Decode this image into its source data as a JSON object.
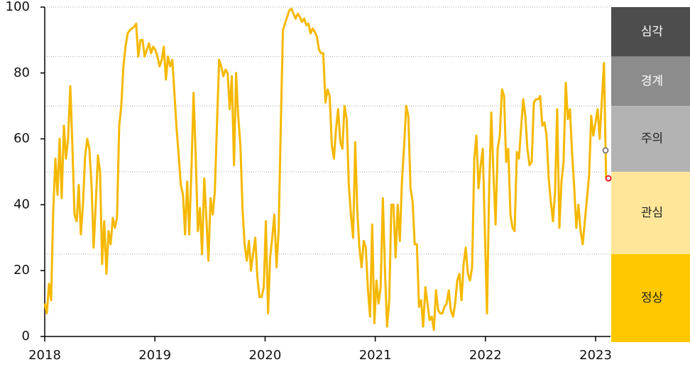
{
  "chart_data": {
    "type": "line",
    "color": "#f5b800",
    "x": [
      2018,
      2018.019,
      2018.039,
      2018.058,
      2018.077,
      2018.097,
      2018.116,
      2018.135,
      2018.154,
      2018.174,
      2018.193,
      2018.212,
      2018.232,
      2018.251,
      2018.27,
      2018.29,
      2018.309,
      2018.328,
      2018.347,
      2018.367,
      2018.386,
      2018.405,
      2018.425,
      2018.444,
      2018.463,
      2018.483,
      2018.502,
      2018.521,
      2018.54,
      2018.56,
      2018.579,
      2018.598,
      2018.618,
      2018.637,
      2018.656,
      2018.676,
      2018.695,
      2018.714,
      2018.733,
      2018.753,
      2018.772,
      2018.791,
      2018.811,
      2018.83,
      2018.849,
      2018.869,
      2018.888,
      2018.907,
      2018.926,
      2018.946,
      2018.965,
      2018.984,
      2019.004,
      2019.023,
      2019.042,
      2019.062,
      2019.081,
      2019.1,
      2019.119,
      2019.139,
      2019.158,
      2019.177,
      2019.197,
      2019.216,
      2019.235,
      2019.255,
      2019.274,
      2019.293,
      2019.312,
      2019.332,
      2019.351,
      2019.37,
      2019.39,
      2019.409,
      2019.428,
      2019.448,
      2019.467,
      2019.486,
      2019.505,
      2019.525,
      2019.544,
      2019.563,
      2019.583,
      2019.602,
      2019.621,
      2019.641,
      2019.66,
      2019.679,
      2019.698,
      2019.718,
      2019.737,
      2019.756,
      2019.776,
      2019.795,
      2019.814,
      2019.834,
      2019.853,
      2019.872,
      2019.891,
      2019.911,
      2019.93,
      2019.949,
      2019.969,
      2019.988,
      2020.007,
      2020.027,
      2020.046,
      2020.065,
      2020.084,
      2020.104,
      2020.123,
      2020.142,
      2020.162,
      2020.181,
      2020.2,
      2020.22,
      2020.239,
      2020.258,
      2020.277,
      2020.297,
      2020.316,
      2020.335,
      2020.355,
      2020.374,
      2020.393,
      2020.413,
      2020.432,
      2020.451,
      2020.47,
      2020.49,
      2020.509,
      2020.528,
      2020.548,
      2020.567,
      2020.586,
      2020.606,
      2020.625,
      2020.644,
      2020.663,
      2020.683,
      2020.702,
      2020.721,
      2020.741,
      2020.76,
      2020.779,
      2020.799,
      2020.818,
      2020.837,
      2020.856,
      2020.876,
      2020.895,
      2020.914,
      2020.934,
      2020.953,
      2020.972,
      2020.992,
      2021.011,
      2021.03,
      2021.049,
      2021.069,
      2021.088,
      2021.107,
      2021.127,
      2021.146,
      2021.165,
      2021.185,
      2021.204,
      2021.223,
      2021.242,
      2021.262,
      2021.281,
      2021.3,
      2021.32,
      2021.339,
      2021.358,
      2021.378,
      2021.397,
      2021.416,
      2021.435,
      2021.455,
      2021.474,
      2021.493,
      2021.513,
      2021.532,
      2021.551,
      2021.571,
      2021.59,
      2021.609,
      2021.628,
      2021.648,
      2021.667,
      2021.686,
      2021.706,
      2021.725,
      2021.744,
      2021.764,
      2021.783,
      2021.802,
      2021.821,
      2021.841,
      2021.86,
      2021.879,
      2021.899,
      2021.918,
      2021.937,
      2021.957,
      2021.976,
      2021.995,
      2022.014,
      2022.034,
      2022.053,
      2022.072,
      2022.092,
      2022.111,
      2022.13,
      2022.15,
      2022.169,
      2022.188,
      2022.207,
      2022.227,
      2022.246,
      2022.265,
      2022.285,
      2022.304,
      2022.323,
      2022.343,
      2022.362,
      2022.381,
      2022.4,
      2022.42,
      2022.439,
      2022.458,
      2022.478,
      2022.497,
      2022.516,
      2022.536,
      2022.555,
      2022.574,
      2022.593,
      2022.613,
      2022.632,
      2022.651,
      2022.671,
      2022.69,
      2022.709,
      2022.729,
      2022.748,
      2022.767,
      2022.786,
      2022.806,
      2022.825,
      2022.844,
      2022.864,
      2022.883,
      2022.902,
      2022.922,
      2022.941,
      2022.96,
      2022.979,
      2022.999,
      2023.018,
      2023.037,
      2023.057,
      2023.076,
      2023.095
    ],
    "values": [
      10,
      7,
      16,
      11,
      38,
      54,
      43,
      60,
      42,
      64,
      54,
      60,
      76,
      58,
      37,
      35,
      46,
      31,
      40,
      55,
      60,
      57,
      46,
      27,
      40,
      55,
      50,
      22,
      35,
      19,
      32,
      28,
      36,
      33,
      36,
      64,
      70,
      82,
      88,
      92,
      93,
      93.5,
      94,
      95,
      85,
      90,
      90,
      85,
      87,
      89,
      86,
      88,
      87,
      85,
      82,
      84,
      88,
      78,
      85,
      82,
      84,
      74,
      63,
      55,
      46,
      43,
      31,
      47,
      31,
      51,
      74,
      55,
      32,
      39,
      25,
      48,
      36,
      23,
      42,
      37,
      44,
      64,
      84,
      82,
      79,
      81,
      80,
      69,
      79,
      52,
      80,
      67,
      58,
      39,
      28,
      23,
      29,
      20,
      25,
      30,
      18,
      12,
      12,
      15,
      35,
      7,
      24,
      30,
      37,
      21,
      32,
      63,
      93,
      95,
      97,
      99,
      99.5,
      98,
      96.5,
      98,
      97,
      95.5,
      96.5,
      94.5,
      95,
      92,
      93.5,
      92.5,
      91,
      87,
      86,
      86,
      71,
      75,
      73,
      58,
      54,
      63,
      69,
      59,
      57,
      70,
      66,
      46,
      37,
      30,
      59,
      38,
      27,
      21,
      29,
      27,
      14,
      6,
      34,
      4,
      17,
      10,
      15,
      42,
      20,
      3,
      11,
      40,
      40,
      24,
      40,
      29,
      47,
      58,
      70,
      67,
      45,
      41,
      28,
      28,
      9,
      11,
      3,
      15,
      10,
      5,
      6,
      2,
      14,
      8,
      7,
      7,
      9,
      10,
      14,
      8,
      6,
      10,
      17,
      19,
      11,
      22,
      27,
      19,
      17,
      21,
      54,
      61,
      45,
      52,
      57,
      32,
      7,
      45,
      68,
      50,
      34,
      57,
      61,
      75,
      73,
      53,
      57,
      37,
      33,
      32,
      56,
      54,
      63,
      72,
      67,
      57,
      52,
      53,
      71,
      72,
      72,
      73,
      64,
      65,
      61,
      48,
      41,
      35,
      44,
      69,
      33,
      47,
      53,
      77,
      66,
      69,
      56,
      45,
      33,
      40,
      32,
      28,
      35,
      42,
      49,
      67,
      61,
      65,
      69,
      60,
      72,
      83,
      48
    ],
    "markers": [
      {
        "x": 2023.09,
        "y": 56.5,
        "color": "#808080"
      },
      {
        "x": 2023.116,
        "y": 48,
        "color": "#e8202a"
      }
    ],
    "bands": [
      {
        "label": "심각",
        "from": 85,
        "to": 100,
        "color": "#4d4d4d",
        "text_color": "#ffffff"
      },
      {
        "label": "경계",
        "from": 70,
        "to": 85,
        "color": "#8c8c8c",
        "text_color": "#ffffff"
      },
      {
        "label": "주의",
        "from": 50,
        "to": 70,
        "color": "#b3b3b3",
        "text_color": "#222222"
      },
      {
        "label": "관심",
        "from": 25,
        "to": 50,
        "color": "#ffe699",
        "text_color": "#222222"
      },
      {
        "label": "정상",
        "from": 0,
        "to": 25,
        "color": "#ffc800",
        "text_color": "#222222"
      }
    ],
    "xlim": [
      2018,
      2023.135
    ],
    "xticks": [
      2018,
      2019,
      2020,
      2021,
      2022,
      2023
    ],
    "ylim": [
      0,
      100
    ],
    "yticks": [
      0,
      20,
      40,
      60,
      80,
      100
    ],
    "grid": true
  }
}
